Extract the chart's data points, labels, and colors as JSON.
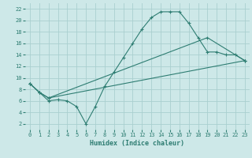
{
  "xlabel": "Humidex (Indice chaleur)",
  "background_color": "#cde8e8",
  "grid_color": "#aacfcf",
  "line_color": "#2e7d72",
  "xlim": [
    -0.5,
    23.5
  ],
  "ylim": [
    1,
    23
  ],
  "xticks": [
    0,
    1,
    2,
    3,
    4,
    5,
    6,
    7,
    8,
    9,
    10,
    11,
    12,
    13,
    14,
    15,
    16,
    17,
    18,
    19,
    20,
    21,
    22,
    23
  ],
  "yticks": [
    2,
    4,
    6,
    8,
    10,
    12,
    14,
    16,
    18,
    20,
    22
  ],
  "curve1_x": [
    0,
    1,
    2,
    3,
    4,
    5,
    6,
    7,
    8,
    9,
    10,
    11,
    12,
    13,
    14,
    15,
    16,
    17,
    18,
    19,
    20,
    21,
    22,
    23
  ],
  "curve1_y": [
    9.0,
    7.5,
    6.0,
    6.2,
    6.0,
    5.0,
    2.0,
    5.0,
    8.5,
    11.0,
    13.5,
    16.0,
    18.5,
    20.5,
    21.5,
    21.5,
    21.5,
    19.5,
    17.0,
    14.5,
    14.5,
    14.0,
    14.0,
    13.0
  ],
  "curve2_x": [
    0,
    1,
    2,
    23
  ],
  "curve2_y": [
    9.0,
    7.5,
    6.5,
    13.0
  ],
  "curve3_x": [
    0,
    1,
    2,
    19,
    23
  ],
  "curve3_y": [
    9.0,
    7.5,
    6.5,
    17.0,
    13.0
  ]
}
